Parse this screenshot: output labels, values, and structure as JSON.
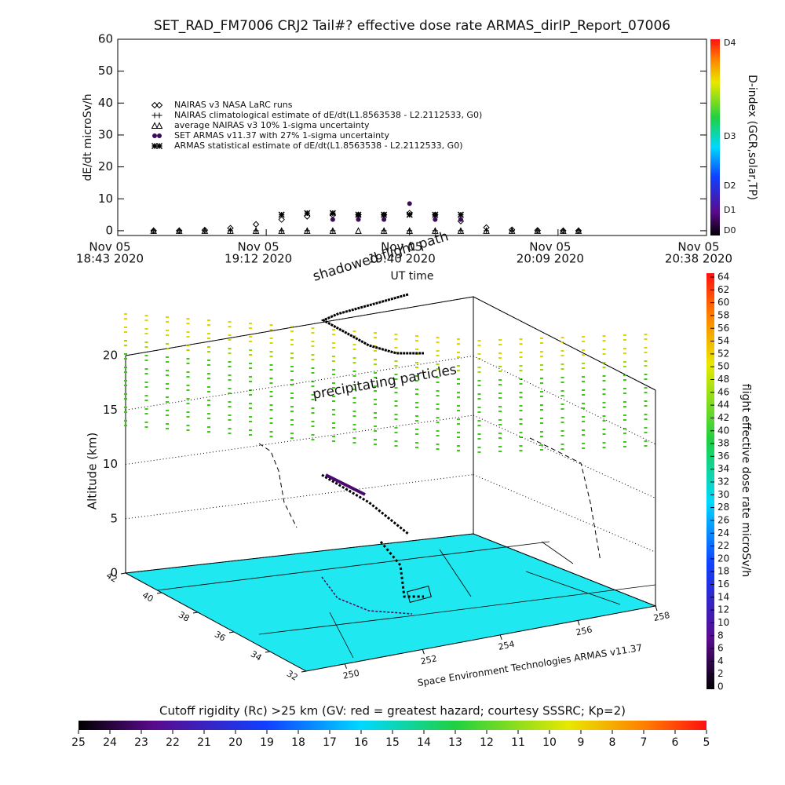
{
  "chart_data": [
    {
      "type": "scatter",
      "title": "SET_RAD_FM7006  CRJ2 Tail#? effective dose rate ARMAS_dirIP_Report_07006",
      "y_label": "dE/dt microSv/h",
      "x_label": "UT time",
      "x": [
        "18:50",
        "18:55",
        "19:00",
        "19:05",
        "19:10",
        "19:15",
        "19:20",
        "19:25",
        "19:30",
        "19:35",
        "19:40",
        "19:45",
        "19:50",
        "19:55",
        "20:00",
        "20:05",
        "20:10",
        "20:13"
      ],
      "xlim": [
        "18:43",
        "20:38"
      ],
      "xticks": [
        {
          "value": "18:43",
          "label": [
            "Nov 05",
            "18:43 2020"
          ]
        },
        {
          "value": "19:12",
          "label": [
            "Nov 05",
            "19:12 2020"
          ]
        },
        {
          "value": "19:40",
          "label": [
            "Nov 05",
            "19:40 2020"
          ]
        },
        {
          "value": "20:09",
          "label": [
            "Nov 05",
            "20:09 2020"
          ]
        },
        {
          "value": "20:38",
          "label": [
            "Nov 05",
            "20:38 2020"
          ]
        }
      ],
      "ylim": [
        -1.5,
        60
      ],
      "yticks": [
        0,
        10,
        20,
        30,
        40,
        50,
        60
      ],
      "series": [
        {
          "name": "NAIRAS v3 NASA LaRC runs",
          "marker": "diamond",
          "color": "#000000",
          "values": [
            0,
            0,
            0.2,
            0.8,
            2,
            3.5,
            4.5,
            5,
            5,
            5,
            5.5,
            5,
            3,
            1,
            0.3,
            0.1,
            0,
            0
          ]
        },
        {
          "name": "NAIRAS climatological estimate of dE/dt(L1.8563538 - L2.2112533, G0)",
          "marker": "plus",
          "color": "#000000",
          "values": [
            0,
            0,
            0,
            0,
            0,
            0,
            0,
            0,
            4.5,
            0,
            0,
            0,
            0,
            0,
            0,
            0,
            0,
            0
          ]
        },
        {
          "name": "average NAIRAS v3 10% 1-sigma uncertainty",
          "marker": "triangle",
          "color": "#000000",
          "values": [
            0,
            0,
            0,
            0,
            0,
            0,
            0,
            0,
            0,
            0,
            0,
            0,
            0,
            0,
            0,
            0,
            0,
            0
          ]
        },
        {
          "name": "SET ARMAS v11.37 with 27% 1-sigma uncertainty",
          "marker": "circle",
          "color": "#3a0c5a",
          "values": [
            null,
            null,
            null,
            null,
            null,
            null,
            null,
            3.5,
            3.5,
            3.5,
            8.5,
            3.5,
            3.5,
            null,
            null,
            null,
            null,
            null
          ]
        },
        {
          "name": "ARMAS statistical estimate of dE/dt(L1.8563538 - L2.2112533, G0)",
          "marker": "asterisk",
          "color": "#000000",
          "values": [
            null,
            null,
            null,
            null,
            null,
            5,
            5.5,
            5.5,
            5,
            5,
            5,
            5,
            5,
            null,
            null,
            null,
            null,
            null
          ]
        }
      ],
      "colorbar": {
        "label": "D-index (GCR,solar,TP)",
        "ticks": [
          "D0",
          "D1",
          "D2",
          "D3",
          "D4"
        ]
      }
    },
    {
      "type": "surface3d",
      "z_label": "Altitude (km)",
      "zlim": [
        0,
        20
      ],
      "zticks": [
        0,
        5,
        10,
        15,
        20
      ],
      "ylim": [
        32,
        42
      ],
      "yticks": [
        32,
        34,
        36,
        38,
        40,
        42
      ],
      "xlim": [
        249,
        258
      ],
      "xticks": [
        250,
        252,
        254,
        256,
        258
      ],
      "annotations": [
        "shadowed flight path",
        "precipitating particles",
        "Space Environment Technologies ARMAS v11.37"
      ],
      "colorbar": {
        "label": "flight effective dose rate microSv/h",
        "lim": [
          0,
          64
        ],
        "ticks": [
          0,
          2,
          4,
          6,
          8,
          10,
          12,
          14,
          16,
          18,
          20,
          22,
          24,
          26,
          28,
          30,
          32,
          34,
          36,
          38,
          40,
          42,
          44,
          46,
          48,
          50,
          52,
          54,
          56,
          58,
          60,
          62,
          64
        ]
      },
      "rigidity_bar": {
        "label": "Cutoff rigidity (Rc) >25 km (GV: red = greatest hazard; courtesy SSSRC; Kp=2)",
        "lim": [
          25,
          5
        ],
        "ticks": [
          25,
          24,
          23,
          22,
          21,
          20,
          19,
          18,
          17,
          16,
          15,
          14,
          13,
          12,
          11,
          10,
          9,
          8,
          7,
          6,
          5
        ]
      }
    }
  ]
}
